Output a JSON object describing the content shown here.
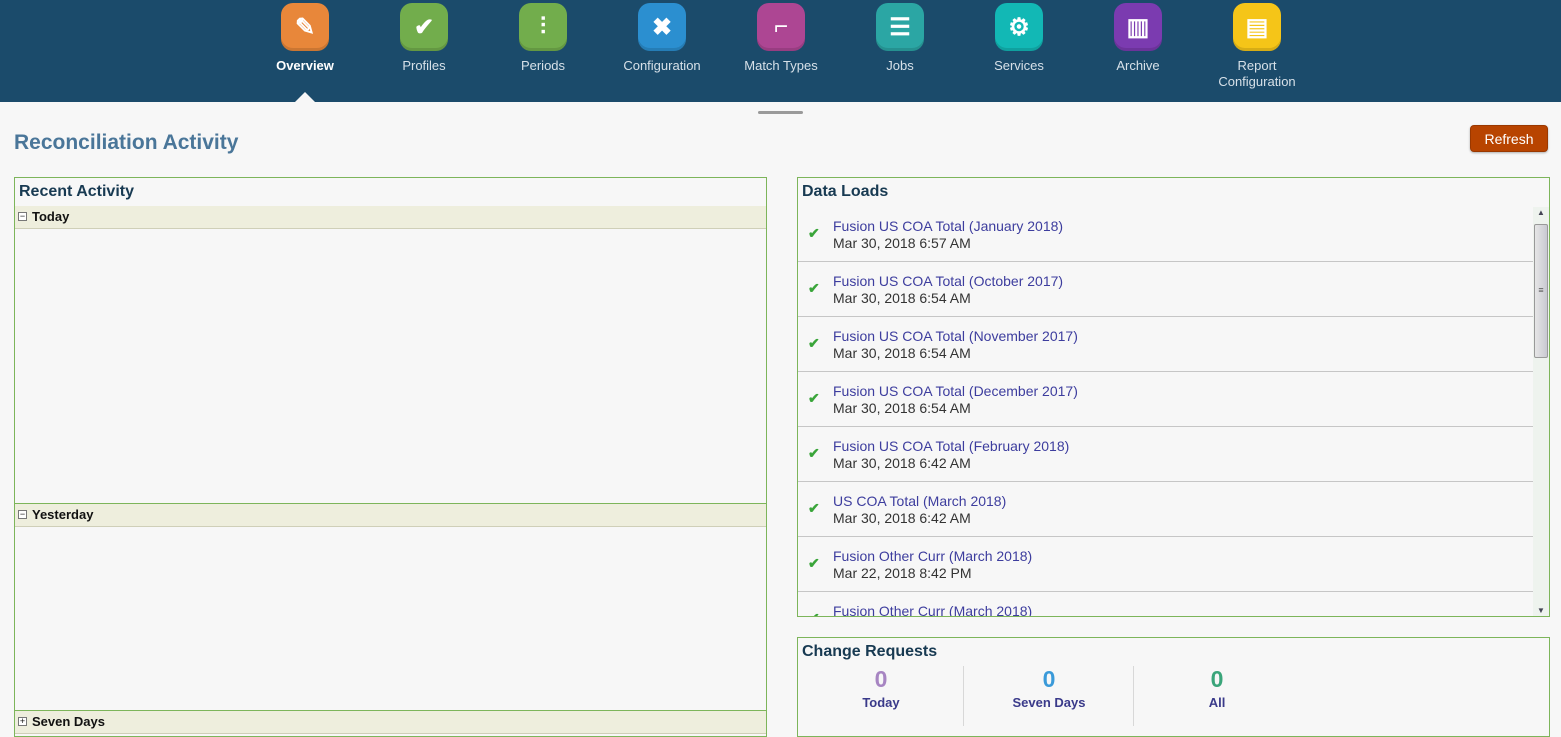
{
  "nav": {
    "items": [
      {
        "label": "Overview",
        "icon": "overview-icon",
        "color": "#e8873a",
        "glyph": "✎",
        "active": true
      },
      {
        "label": "Profiles",
        "icon": "clipboard-check-icon",
        "color": "#72ad4c",
        "glyph": "✔"
      },
      {
        "label": "Periods",
        "icon": "sliders-icon",
        "color": "#72ad4c",
        "glyph": "⫶"
      },
      {
        "label": "Configuration",
        "icon": "tools-icon",
        "color": "#2b8fd0",
        "glyph": "✖"
      },
      {
        "label": "Match Types",
        "icon": "match-types-icon",
        "color": "#ad4693",
        "glyph": "⌐"
      },
      {
        "label": "Jobs",
        "icon": "clipboard-list-icon",
        "color": "#2ba6a4",
        "glyph": "☰"
      },
      {
        "label": "Services",
        "icon": "services-gear-icon",
        "color": "#12b8b5",
        "glyph": "⚙"
      },
      {
        "label": "Archive",
        "icon": "archive-binders-icon",
        "color": "#7b3bb0",
        "glyph": "▥"
      },
      {
        "label": "Report Configuration",
        "icon": "report-icon",
        "color": "#f5c518",
        "glyph": "▤"
      }
    ]
  },
  "page": {
    "title": "Reconciliation Activity",
    "refresh_label": "Refresh"
  },
  "recent_activity": {
    "title": "Recent Activity",
    "groups": [
      {
        "label": "Today",
        "toggle": "−"
      },
      {
        "label": "Yesterday",
        "toggle": "−"
      },
      {
        "label": "Seven Days",
        "toggle": "+"
      }
    ]
  },
  "data_loads": {
    "title": "Data Loads",
    "status_icon": "checkmark-icon",
    "items": [
      {
        "name": "Fusion US COA Total (January 2018)",
        "date": "Mar 30, 2018 6:57 AM"
      },
      {
        "name": "Fusion US COA Total (October 2017)",
        "date": "Mar 30, 2018 6:54 AM"
      },
      {
        "name": "Fusion US COA Total (November 2017)",
        "date": "Mar 30, 2018 6:54 AM"
      },
      {
        "name": "Fusion US COA Total (December 2017)",
        "date": "Mar 30, 2018 6:54 AM"
      },
      {
        "name": "Fusion US COA Total (February 2018)",
        "date": "Mar 30, 2018 6:42 AM"
      },
      {
        "name": "US COA Total (March 2018)",
        "date": "Mar 30, 2018 6:42 AM"
      },
      {
        "name": "Fusion Other Curr (March 2018)",
        "date": "Mar 22, 2018 8:42 PM"
      },
      {
        "name": "Fusion Other Curr (March 2018)",
        "date": ""
      }
    ]
  },
  "change_requests": {
    "title": "Change Requests",
    "stats": [
      {
        "value": "0",
        "label": "Today",
        "color": "#a785c2"
      },
      {
        "value": "0",
        "label": "Seven Days",
        "color": "#3a9ad9"
      },
      {
        "value": "0",
        "label": "All",
        "color": "#3aa57a"
      }
    ]
  }
}
